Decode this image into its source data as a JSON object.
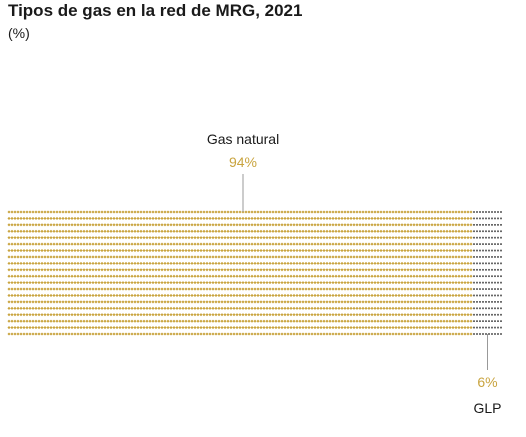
{
  "chart_data": {
    "type": "waffle",
    "title": "Tipos de gas en la red de MRG, 2021",
    "subtitle": "(%)",
    "categories": [
      "Gas natural",
      "GLP"
    ],
    "values": [
      94,
      6
    ],
    "value_labels": [
      "94%",
      "6%"
    ],
    "colors": [
      "#c9a43f",
      "#4d4d4d"
    ],
    "label_color": "#c9a43f",
    "leader_color": "#999999"
  }
}
